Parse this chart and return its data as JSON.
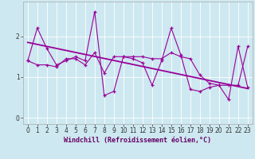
{
  "xlabel": "Windchill (Refroidissement éolien,°C)",
  "background_color": "#cde8f0",
  "line_color": "#990099",
  "x_data": [
    0,
    1,
    2,
    3,
    4,
    5,
    6,
    7,
    8,
    9,
    10,
    11,
    12,
    13,
    14,
    15,
    16,
    17,
    18,
    19,
    20,
    21,
    22,
    23
  ],
  "y_data1": [
    1.4,
    2.2,
    1.7,
    1.3,
    1.4,
    1.5,
    1.4,
    2.6,
    0.55,
    0.65,
    1.5,
    1.45,
    1.35,
    0.8,
    1.4,
    2.2,
    1.55,
    0.7,
    0.65,
    0.75,
    0.8,
    0.45,
    1.75,
    0.75
  ],
  "y_data2": [
    1.4,
    1.3,
    1.3,
    1.25,
    1.45,
    1.45,
    1.3,
    1.6,
    1.1,
    1.5,
    1.5,
    1.5,
    1.5,
    1.45,
    1.45,
    1.6,
    1.5,
    1.45,
    1.05,
    0.85,
    0.8,
    0.8,
    0.8,
    1.75
  ],
  "trend_x": [
    0,
    23
  ],
  "trend_y": [
    1.85,
    0.72
  ],
  "ylim": [
    -0.15,
    2.85
  ],
  "xlim": [
    -0.5,
    23.5
  ],
  "yticks": [
    0,
    1,
    2
  ],
  "xticks": [
    0,
    1,
    2,
    3,
    4,
    5,
    6,
    7,
    8,
    9,
    10,
    11,
    12,
    13,
    14,
    15,
    16,
    17,
    18,
    19,
    20,
    21,
    22,
    23
  ],
  "grid_color": "#ffffff",
  "xlabel_color": "#660066",
  "xlabel_fontsize": 6.0,
  "tick_labelsize": 5.5
}
